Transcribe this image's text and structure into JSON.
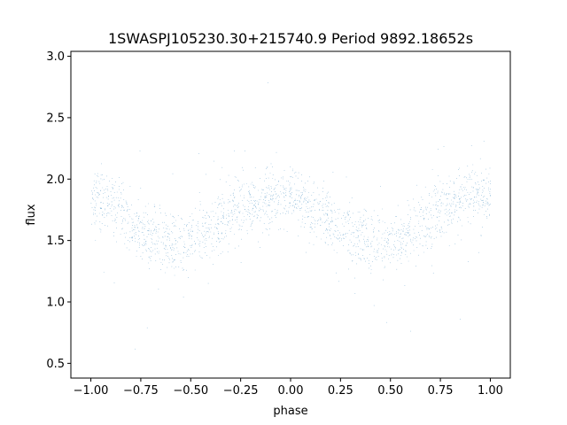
{
  "chart_data": {
    "type": "scatter",
    "title": "1SWASPJ105230.30+215740.9 Period 9892.18652s",
    "xlabel": "phase",
    "ylabel": "flux",
    "xlim": [
      -1.1,
      1.1
    ],
    "ylim": [
      0.38,
      3.04
    ],
    "xticks": [
      -1.0,
      -0.75,
      -0.5,
      -0.25,
      0.0,
      0.25,
      0.5,
      0.75,
      1.0
    ],
    "xtick_labels": [
      "−1.00",
      "−0.75",
      "−0.50",
      "−0.25",
      "0.00",
      "0.25",
      "0.50",
      "0.75",
      "1.00"
    ],
    "yticks": [
      0.5,
      1.0,
      1.5,
      2.0,
      2.5,
      3.0
    ],
    "ytick_labels": [
      "0.5",
      "1.0",
      "1.5",
      "2.0",
      "2.5",
      "3.0"
    ],
    "grid": false,
    "series": [
      {
        "color": "#1f77b4",
        "marker": "point",
        "x": [
          -1.0,
          -0.975,
          -0.95,
          -0.925,
          -0.9,
          -0.875,
          -0.85,
          -0.825,
          -0.8,
          -0.775,
          -0.75,
          -0.725,
          -0.7,
          -0.675,
          -0.65,
          -0.625,
          -0.6,
          -0.575,
          -0.55,
          -0.525,
          -0.5,
          -0.475,
          -0.45,
          -0.425,
          -0.4,
          -0.375,
          -0.35,
          -0.325,
          -0.3,
          -0.275,
          -0.25,
          -0.225,
          -0.2,
          -0.175,
          -0.15,
          -0.125,
          -0.1,
          -0.075,
          -0.05,
          -0.025,
          0.0,
          0.025,
          0.05,
          0.075,
          0.1,
          0.125,
          0.15,
          0.175,
          0.2,
          0.225,
          0.25,
          0.275,
          0.3,
          0.325,
          0.35,
          0.375,
          0.4,
          0.425,
          0.45,
          0.475,
          0.5,
          0.525,
          0.55,
          0.575,
          0.6,
          0.625,
          0.65,
          0.675,
          0.7,
          0.725,
          0.75,
          0.775,
          0.8,
          0.825,
          0.85,
          0.875,
          0.9,
          0.925,
          0.95,
          0.975,
          1.0
        ],
        "y": [
          1.84,
          1.85,
          1.84,
          1.82,
          1.8,
          1.76,
          1.73,
          1.69,
          1.65,
          1.62,
          1.59,
          1.56,
          1.54,
          1.52,
          1.51,
          1.5,
          1.49,
          1.49,
          1.5,
          1.5,
          1.51,
          1.52,
          1.54,
          1.57,
          1.6,
          1.63,
          1.66,
          1.69,
          1.72,
          1.75,
          1.77,
          1.79,
          1.81,
          1.83,
          1.85,
          1.86,
          1.87,
          1.87,
          1.87,
          1.86,
          1.85,
          1.84,
          1.82,
          1.8,
          1.77,
          1.74,
          1.71,
          1.68,
          1.65,
          1.62,
          1.59,
          1.57,
          1.55,
          1.53,
          1.52,
          1.51,
          1.5,
          1.49,
          1.49,
          1.49,
          1.5,
          1.51,
          1.53,
          1.55,
          1.58,
          1.61,
          1.64,
          1.67,
          1.7,
          1.73,
          1.76,
          1.78,
          1.8,
          1.82,
          1.84,
          1.85,
          1.86,
          1.86,
          1.86,
          1.86,
          1.85
        ],
        "scatter_sd": 0.17,
        "points": 15000
      }
    ]
  }
}
